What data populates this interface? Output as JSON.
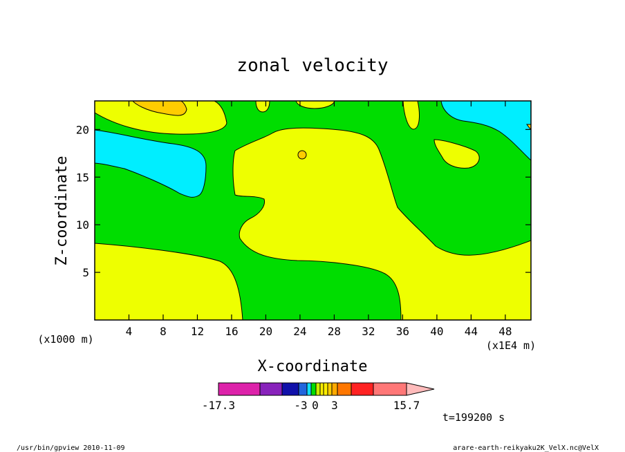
{
  "chart_data": {
    "type": "heatmap",
    "title": "zonal velocity",
    "xlabel": "X-coordinate",
    "ylabel": "Z-coordinate",
    "x_unit": "(x1E4 m)",
    "y_unit": "(x1000 m)",
    "xlim": [
      0,
      51
    ],
    "ylim": [
      0,
      23
    ],
    "xticks": [
      4,
      8,
      12,
      16,
      20,
      24,
      28,
      32,
      36,
      40,
      44,
      48
    ],
    "yticks": [
      5,
      10,
      15,
      20
    ],
    "colorbar": {
      "levels": [
        -17.3,
        -12,
        -9,
        -6,
        -4.5,
        -3,
        -1.5,
        0,
        0.5,
        1,
        1.5,
        2,
        3,
        6,
        9,
        15.7
      ],
      "colors": [
        "#dd22aa",
        "#8822bb",
        "#1111aa",
        "#2266dd",
        "#11ddff",
        "#00dd00",
        "#ccee00",
        "#ffee00",
        "#ffee00",
        "#ffcc00",
        "#ffaa00",
        "#ff7700",
        "#ff2222",
        "#ff7777",
        "#ffbbbb"
      ],
      "labels": [
        {
          "value": -17.3,
          "text": "-17.3"
        },
        {
          "value": -3,
          "text": "-3"
        },
        {
          "value": 0,
          "text": "0"
        },
        {
          "value": 3,
          "text": "3"
        },
        {
          "value": 15.7,
          "text": "15.7"
        }
      ]
    },
    "region_colors": {
      "green": "#00dd00",
      "yellow": "#eeff00",
      "cyan": "#00eeff",
      "orange": "#ffcc00"
    }
  },
  "time_label": "t=199200 s",
  "footer_left": "/usr/bin/gpview  2010-11-09",
  "footer_right": "arare-earth-reikyaku2K_VelX.nc@VelX"
}
